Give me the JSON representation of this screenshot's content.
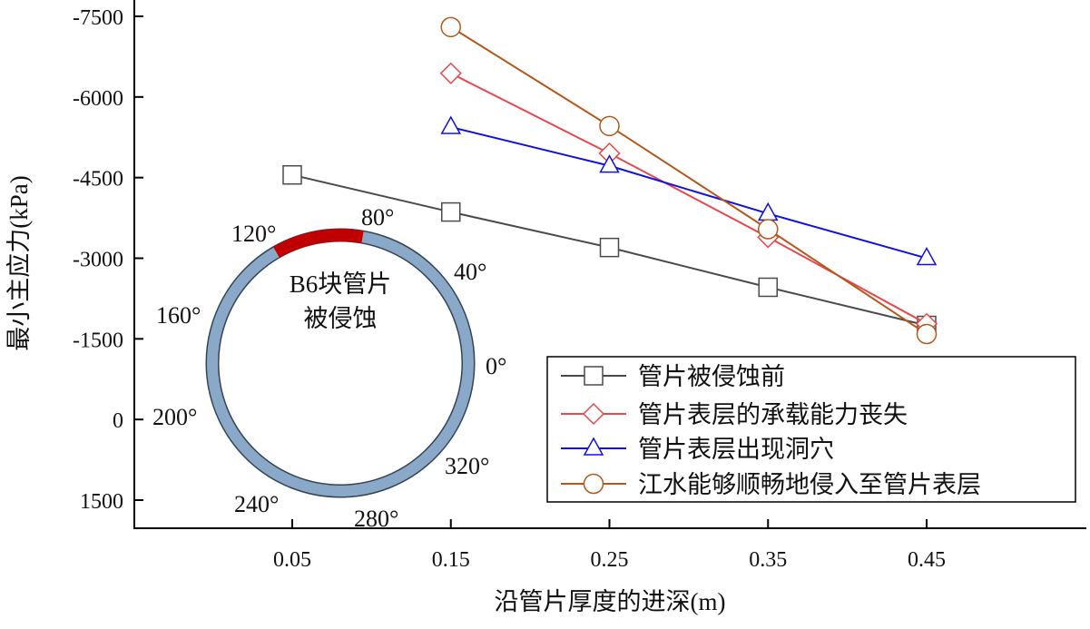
{
  "chart_data": {
    "type": "line",
    "xlabel": "沿管片厚度的进深(m)",
    "ylabel": "最小主应力(kPa)",
    "xlim": [
      -0.05,
      0.55
    ],
    "ylim": [
      1500,
      -7500
    ],
    "y_inverted": true,
    "x_ticks": [
      "0.05",
      "0.15",
      "0.25",
      "0.35",
      "0.45"
    ],
    "x_tick_values": [
      0.05,
      0.15,
      0.25,
      0.35,
      0.45
    ],
    "y_ticks": [
      "-7500",
      "-6000",
      "-4500",
      "-3000",
      "-1500",
      "0",
      "1500"
    ],
    "y_tick_values": [
      -7500,
      -6000,
      -4500,
      -3000,
      -1500,
      0,
      1500
    ],
    "grid": false,
    "legend_position": "bottom-right",
    "series": [
      {
        "name": "管片被侵蚀前",
        "color": "#4a4a4a",
        "marker": "square",
        "x": [
          0.05,
          0.15,
          0.25,
          0.35,
          0.45
        ],
        "y": [
          -4550,
          -3860,
          -3200,
          -2460,
          -1750
        ]
      },
      {
        "name": "管片表层的承载能力丧失",
        "color": "#e8474c",
        "marker": "diamond",
        "x": [
          0.15,
          0.25,
          0.35,
          0.45
        ],
        "y": [
          -6440,
          -4950,
          -3390,
          -1780
        ]
      },
      {
        "name": "管片表层出现洞穴",
        "color": "#1010e0",
        "marker": "triangle",
        "x": [
          0.15,
          0.25,
          0.35,
          0.45
        ],
        "y": [
          -5440,
          -4720,
          -3830,
          -3000
        ]
      },
      {
        "name": "江水能够顺畅地侵入至管片表层",
        "color": "#b5561a",
        "marker": "circle",
        "x": [
          0.15,
          0.25,
          0.35,
          0.45
        ],
        "y": [
          -7300,
          -5460,
          -3540,
          -1590
        ]
      }
    ],
    "inset": {
      "label_line1": "B6块管片",
      "label_line2": "被侵蚀",
      "ring_color": "#8aa9c9",
      "eroded_color": "#c00000",
      "eroded_range_deg": [
        80,
        120
      ],
      "angle_labels": [
        "0°",
        "40°",
        "80°",
        "120°",
        "160°",
        "200°",
        "240°",
        "280°",
        "320°"
      ]
    }
  }
}
